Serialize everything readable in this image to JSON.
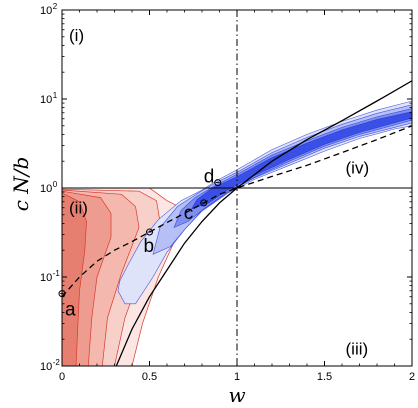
{
  "chart_data": {
    "type": "contour",
    "xlabel": "w",
    "ylabel": "c N/b",
    "xscale": "linear",
    "yscale": "log",
    "xlim": [
      0,
      2
    ],
    "ylim": [
      0.01,
      100
    ],
    "x_ticks": [
      {
        "value": 0,
        "label": "0"
      },
      {
        "value": 0.5,
        "label": "0.5"
      },
      {
        "value": 1,
        "label": "1"
      },
      {
        "value": 1.5,
        "label": "1.5"
      },
      {
        "value": 2,
        "label": "2"
      }
    ],
    "y_ticks": [
      {
        "value": 0.01,
        "base": "10",
        "exp": "-2"
      },
      {
        "value": 0.1,
        "base": "10",
        "exp": "-1"
      },
      {
        "value": 1,
        "base": "10",
        "exp": "0"
      },
      {
        "value": 10,
        "base": "10",
        "exp": "1"
      },
      {
        "value": 100,
        "base": "10",
        "exp": "2"
      }
    ],
    "reference_lines": {
      "horizontal_y": 1,
      "vertical_x": 1
    },
    "regions": [
      {
        "label": "(i)",
        "x": 0.04,
        "y": 45
      },
      {
        "label": "(ii)",
        "x": 0.04,
        "y": 0.52
      },
      {
        "label": "(iii)",
        "x": 1.62,
        "y": 0.0135
      },
      {
        "label": "(iv)",
        "x": 1.62,
        "y": 1.45
      }
    ],
    "points": [
      {
        "label": "a",
        "x": 0.0,
        "y": 0.065
      },
      {
        "label": "b",
        "x": 0.5,
        "y": 0.32
      },
      {
        "label": "c",
        "x": 0.81,
        "y": 0.68
      },
      {
        "label": "d",
        "x": 0.89,
        "y": 1.15
      }
    ],
    "solid_curve": [
      [
        0.31,
        0.01
      ],
      [
        0.4,
        0.026
      ],
      [
        0.5,
        0.06
      ],
      [
        0.6,
        0.12
      ],
      [
        0.7,
        0.24
      ],
      [
        0.8,
        0.42
      ],
      [
        0.9,
        0.68
      ],
      [
        1.0,
        1.0
      ],
      [
        1.2,
        2.0
      ],
      [
        1.4,
        3.5
      ],
      [
        1.6,
        5.7
      ],
      [
        1.8,
        9.5
      ],
      [
        2.0,
        16
      ]
    ],
    "dashed_curve": [
      [
        0.0,
        0.06
      ],
      [
        0.1,
        0.1
      ],
      [
        0.2,
        0.15
      ],
      [
        0.3,
        0.2
      ],
      [
        0.4,
        0.25
      ],
      [
        0.5,
        0.32
      ],
      [
        0.6,
        0.41
      ],
      [
        0.7,
        0.52
      ],
      [
        0.81,
        0.68
      ],
      [
        0.9,
        0.85
      ],
      [
        1.0,
        1.0
      ],
      [
        1.2,
        1.35
      ],
      [
        1.4,
        1.8
      ],
      [
        1.6,
        2.5
      ],
      [
        1.8,
        3.5
      ],
      [
        2.0,
        5.0
      ]
    ],
    "red_contours": [
      [
        [
          0,
          1
        ],
        [
          0.5,
          1
        ],
        [
          0.6,
          0.72
        ],
        [
          0.68,
          0.6
        ],
        [
          0.66,
          0.3
        ],
        [
          0.55,
          0.1
        ],
        [
          0.46,
          0.03
        ],
        [
          0.4,
          0.01
        ],
        [
          0,
          0.01
        ]
      ],
      [
        [
          0,
          0.97
        ],
        [
          0.44,
          0.92
        ],
        [
          0.54,
          0.72
        ],
        [
          0.56,
          0.42
        ],
        [
          0.46,
          0.12
        ],
        [
          0.36,
          0.035
        ],
        [
          0.3,
          0.01
        ],
        [
          0,
          0.01
        ]
      ],
      [
        [
          0,
          0.95
        ],
        [
          0.34,
          0.85
        ],
        [
          0.42,
          0.62
        ],
        [
          0.44,
          0.36
        ],
        [
          0.34,
          0.11
        ],
        [
          0.26,
          0.035
        ],
        [
          0.23,
          0.01
        ],
        [
          0,
          0.01
        ]
      ],
      [
        [
          0,
          0.92
        ],
        [
          0.22,
          0.78
        ],
        [
          0.28,
          0.52
        ],
        [
          0.28,
          0.28
        ],
        [
          0.2,
          0.1
        ],
        [
          0.17,
          0.035
        ],
        [
          0.15,
          0.01
        ],
        [
          0,
          0.01
        ]
      ],
      [
        [
          0,
          0.88
        ],
        [
          0.1,
          0.7
        ],
        [
          0.14,
          0.42
        ],
        [
          0.13,
          0.2
        ],
        [
          0.1,
          0.07
        ],
        [
          0.09,
          0.028
        ],
        [
          0.08,
          0.01
        ],
        [
          0,
          0.01
        ]
      ]
    ],
    "blue_contours": [
      [
        [
          0.32,
          0.07
        ],
        [
          0.36,
          0.05
        ],
        [
          0.42,
          0.05
        ],
        [
          0.52,
          0.1
        ],
        [
          0.6,
          0.19
        ],
        [
          0.7,
          0.34
        ],
        [
          0.8,
          0.55
        ],
        [
          0.95,
          0.88
        ],
        [
          1.1,
          1.25
        ],
        [
          1.3,
          1.8
        ],
        [
          1.5,
          2.6
        ],
        [
          1.7,
          3.6
        ],
        [
          1.9,
          4.6
        ],
        [
          2.0,
          5.0
        ],
        [
          2.0,
          9.5
        ],
        [
          1.8,
          7.5
        ],
        [
          1.6,
          5.6
        ],
        [
          1.4,
          4.0
        ],
        [
          1.2,
          2.7
        ],
        [
          1.0,
          1.6
        ],
        [
          0.88,
          1.2
        ],
        [
          0.8,
          0.95
        ],
        [
          0.68,
          0.72
        ],
        [
          0.55,
          0.44
        ],
        [
          0.45,
          0.25
        ],
        [
          0.38,
          0.14
        ],
        [
          0.33,
          0.09
        ]
      ],
      [
        [
          0.52,
          0.18
        ],
        [
          0.62,
          0.22
        ],
        [
          0.7,
          0.34
        ],
        [
          0.8,
          0.56
        ],
        [
          0.95,
          0.9
        ],
        [
          1.1,
          1.3
        ],
        [
          1.3,
          1.9
        ],
        [
          1.5,
          2.8
        ],
        [
          1.7,
          3.8
        ],
        [
          1.9,
          4.8
        ],
        [
          2.0,
          5.4
        ],
        [
          2.0,
          8.6
        ],
        [
          1.8,
          6.9
        ],
        [
          1.6,
          5.2
        ],
        [
          1.4,
          3.7
        ],
        [
          1.2,
          2.5
        ],
        [
          1.0,
          1.5
        ],
        [
          0.88,
          1.15
        ],
        [
          0.78,
          0.88
        ],
        [
          0.66,
          0.62
        ],
        [
          0.56,
          0.36
        ]
      ],
      [
        [
          0.64,
          0.36
        ],
        [
          0.72,
          0.42
        ],
        [
          0.82,
          0.6
        ],
        [
          0.95,
          0.92
        ],
        [
          1.1,
          1.32
        ],
        [
          1.3,
          2.0
        ],
        [
          1.5,
          2.95
        ],
        [
          1.7,
          4.0
        ],
        [
          1.9,
          5.1
        ],
        [
          2.0,
          5.8
        ],
        [
          2.0,
          7.8
        ],
        [
          1.8,
          6.3
        ],
        [
          1.6,
          4.8
        ],
        [
          1.4,
          3.4
        ],
        [
          1.2,
          2.35
        ],
        [
          1.0,
          1.42
        ],
        [
          0.88,
          1.08
        ],
        [
          0.76,
          0.78
        ],
        [
          0.68,
          0.56
        ]
      ],
      [
        [
          0.74,
          0.58
        ],
        [
          0.84,
          0.68
        ],
        [
          0.95,
          0.96
        ],
        [
          1.1,
          1.38
        ],
        [
          1.3,
          2.1
        ],
        [
          1.5,
          3.1
        ],
        [
          1.7,
          4.2
        ],
        [
          1.9,
          5.4
        ],
        [
          2.0,
          6.1
        ],
        [
          2.0,
          7.2
        ],
        [
          1.8,
          5.9
        ],
        [
          1.6,
          4.5
        ],
        [
          1.4,
          3.2
        ],
        [
          1.2,
          2.2
        ],
        [
          1.0,
          1.34
        ],
        [
          0.86,
          1.0
        ],
        [
          0.77,
          0.74
        ]
      ]
    ],
    "colors": {
      "red_fills": [
        "#fbe6e3",
        "#f8d0ca",
        "#f4b8ae",
        "#ee9c8f",
        "#e77f70"
      ],
      "red_stroke": "#d9392b",
      "blue_fills": [
        "#dfe3fa",
        "#b6c0f6",
        "#7f8ff0",
        "#3a4fe6"
      ],
      "blue_stroke": "#1f33d8"
    }
  }
}
